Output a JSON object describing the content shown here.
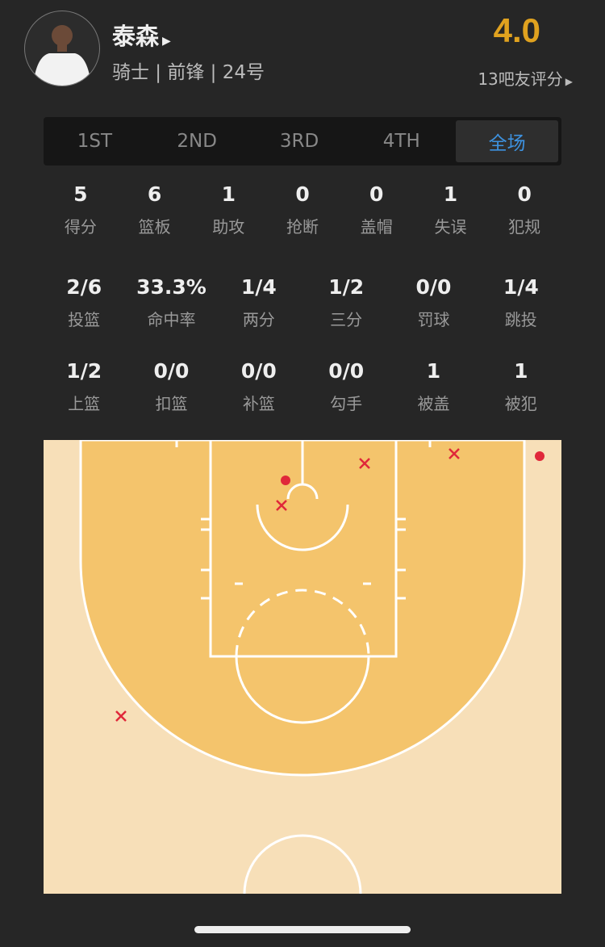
{
  "player": {
    "name": "泰森",
    "info": "骑士 | 前锋 | 24号",
    "score": "4.0",
    "rating_text": "13吧友评分"
  },
  "colors": {
    "accent": "#3d92e0",
    "score": "#e0a21f",
    "court_outer": "#f7dfb8",
    "court_inner": "#f4c46c",
    "shot": "#e0283a"
  },
  "tabs": [
    {
      "label": "1ST"
    },
    {
      "label": "2ND"
    },
    {
      "label": "3RD"
    },
    {
      "label": "4TH"
    },
    {
      "label": "全场",
      "active": true
    }
  ],
  "stats_row1": [
    {
      "v": "5",
      "l": "得分"
    },
    {
      "v": "6",
      "l": "篮板"
    },
    {
      "v": "1",
      "l": "助攻"
    },
    {
      "v": "0",
      "l": "抢断"
    },
    {
      "v": "0",
      "l": "盖帽"
    },
    {
      "v": "1",
      "l": "失误"
    },
    {
      "v": "0",
      "l": "犯规"
    }
  ],
  "stats_row2": [
    {
      "v": "2/6",
      "l": "投篮"
    },
    {
      "v": "33.3%",
      "l": "命中率"
    },
    {
      "v": "1/4",
      "l": "两分"
    },
    {
      "v": "1/2",
      "l": "三分"
    },
    {
      "v": "0/0",
      "l": "罚球"
    },
    {
      "v": "1/4",
      "l": "跳投"
    }
  ],
  "stats_row3": [
    {
      "v": "1/2",
      "l": "上篮"
    },
    {
      "v": "0/0",
      "l": "扣篮"
    },
    {
      "v": "0/0",
      "l": "补篮"
    },
    {
      "v": "0/0",
      "l": "勾手"
    },
    {
      "v": "1",
      "l": "被盖"
    },
    {
      "v": "1",
      "l": "被犯"
    }
  ],
  "shots": [
    {
      "result": "made",
      "ft_x": 0.5,
      "ft_y": 1.0
    },
    {
      "result": "missed"
    },
    {
      "result": "missed"
    },
    {
      "result": "missed"
    },
    {
      "result": "made"
    },
    {
      "result": "missed"
    }
  ]
}
